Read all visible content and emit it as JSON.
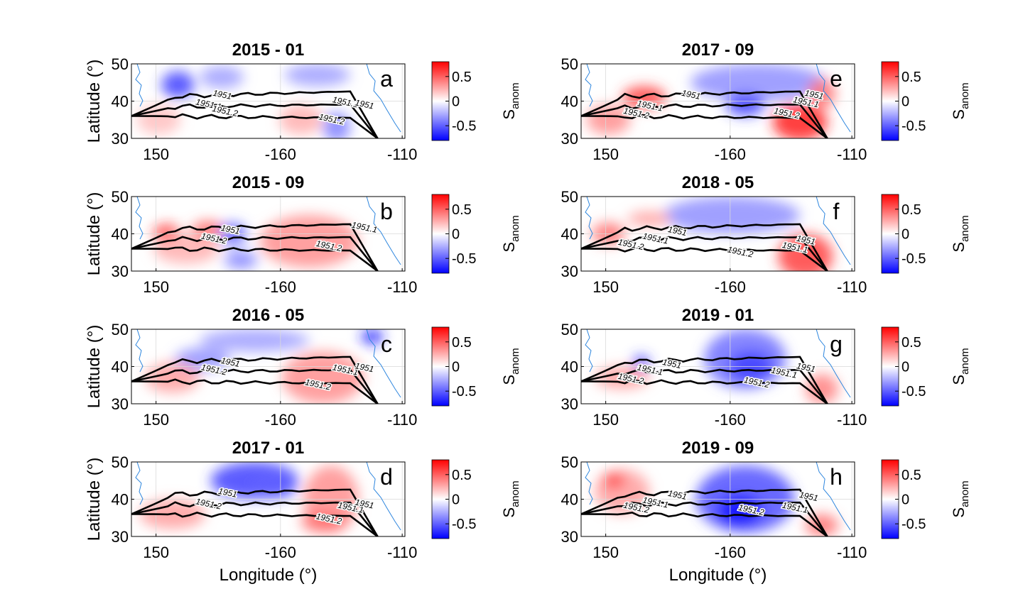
{
  "figure": {
    "xlabel": "Longitude (°)",
    "ylabel": "Latitude (°)",
    "colorbar": {
      "label_main": "S",
      "label_sub": "anom",
      "ticks": [
        "0.5",
        "0",
        "-0.5"
      ],
      "range": [
        -0.8,
        0.8
      ]
    },
    "contour_levels": [
      "1951",
      "1951.1",
      "1951.2"
    ]
  },
  "chart_data": [
    {
      "type": "heatmap",
      "panel": "a",
      "title": "2015 - 01",
      "xticks": [
        "150",
        "-160",
        "-110"
      ],
      "yticks": [
        "50",
        "40",
        "30"
      ],
      "ylim": [
        30,
        50
      ],
      "blobs": [
        {
          "x": 0.17,
          "y": 0.72,
          "rx": 0.06,
          "ry": 0.18,
          "v": -0.6
        },
        {
          "x": 0.33,
          "y": 0.82,
          "rx": 0.08,
          "ry": 0.15,
          "v": -0.3
        },
        {
          "x": 0.68,
          "y": 0.85,
          "rx": 0.12,
          "ry": 0.15,
          "v": -0.3
        },
        {
          "x": 0.62,
          "y": 0.25,
          "rx": 0.08,
          "ry": 0.2,
          "v": 0.25
        },
        {
          "x": 0.75,
          "y": 0.15,
          "rx": 0.05,
          "ry": 0.2,
          "v": -0.4
        },
        {
          "x": 0.1,
          "y": 0.25,
          "rx": 0.08,
          "ry": 0.2,
          "v": 0.2
        }
      ],
      "contour_labels": [
        {
          "x": 0.33,
          "y": 0.55,
          "text": "1951"
        },
        {
          "x": 0.28,
          "y": 0.42,
          "text": "1951.1"
        },
        {
          "x": 0.34,
          "y": 0.33,
          "text": "1951.2"
        },
        {
          "x": 0.73,
          "y": 0.22,
          "text": "1951.2"
        },
        {
          "x": 0.78,
          "y": 0.45,
          "text": "1951.1"
        },
        {
          "x": 0.85,
          "y": 0.42,
          "text": "1951"
        }
      ]
    },
    {
      "type": "heatmap",
      "panel": "b",
      "title": "2015 - 09",
      "xticks": [
        "150",
        "-160",
        "-110"
      ],
      "yticks": [
        "50",
        "40",
        "30"
      ],
      "ylim": [
        30,
        50
      ],
      "blobs": [
        {
          "x": 0.13,
          "y": 0.5,
          "rx": 0.05,
          "ry": 0.12,
          "v": 0.7
        },
        {
          "x": 0.28,
          "y": 0.55,
          "rx": 0.06,
          "ry": 0.12,
          "v": 0.5
        },
        {
          "x": 0.37,
          "y": 0.5,
          "rx": 0.05,
          "ry": 0.15,
          "v": -0.5
        },
        {
          "x": 0.65,
          "y": 0.4,
          "rx": 0.18,
          "ry": 0.35,
          "v": 0.35
        },
        {
          "x": 0.4,
          "y": 0.15,
          "rx": 0.06,
          "ry": 0.12,
          "v": -0.4
        },
        {
          "x": 0.2,
          "y": 0.3,
          "rx": 0.12,
          "ry": 0.2,
          "v": 0.25
        }
      ],
      "contour_labels": [
        {
          "x": 0.36,
          "y": 0.52,
          "text": "1951"
        },
        {
          "x": 0.3,
          "y": 0.4,
          "text": "1951.2"
        },
        {
          "x": 0.85,
          "y": 0.55,
          "text": "1951.1"
        },
        {
          "x": 0.72,
          "y": 0.3,
          "text": "1951.2"
        }
      ]
    },
    {
      "type": "heatmap",
      "panel": "c",
      "title": "2016 - 05",
      "xticks": [
        "150",
        "-160",
        "-110"
      ],
      "yticks": [
        "50",
        "40",
        "30"
      ],
      "ylim": [
        30,
        50
      ],
      "blobs": [
        {
          "x": 0.45,
          "y": 0.85,
          "rx": 0.2,
          "ry": 0.15,
          "v": -0.3
        },
        {
          "x": 0.26,
          "y": 0.6,
          "rx": 0.1,
          "ry": 0.15,
          "v": -0.35
        },
        {
          "x": 0.7,
          "y": 0.35,
          "rx": 0.15,
          "ry": 0.35,
          "v": 0.35
        },
        {
          "x": 0.88,
          "y": 0.9,
          "rx": 0.04,
          "ry": 0.1,
          "v": -0.7
        },
        {
          "x": 0.15,
          "y": 0.35,
          "rx": 0.1,
          "ry": 0.2,
          "v": 0.3
        }
      ],
      "contour_labels": [
        {
          "x": 0.36,
          "y": 0.52,
          "text": "1951"
        },
        {
          "x": 0.3,
          "y": 0.42,
          "text": "1951.2"
        },
        {
          "x": 0.78,
          "y": 0.42,
          "text": "1951.1"
        },
        {
          "x": 0.68,
          "y": 0.22,
          "text": "1951.2"
        },
        {
          "x": 0.85,
          "y": 0.45,
          "text": "1951"
        }
      ]
    },
    {
      "type": "heatmap",
      "panel": "d",
      "title": "2017 - 01",
      "xticks": [
        "150",
        "-160",
        "-110"
      ],
      "yticks": [
        "50",
        "40",
        "30"
      ],
      "ylim": [
        30,
        50
      ],
      "blobs": [
        {
          "x": 0.45,
          "y": 0.75,
          "rx": 0.16,
          "ry": 0.25,
          "v": -0.6
        },
        {
          "x": 0.52,
          "y": 0.65,
          "rx": 0.08,
          "ry": 0.15,
          "v": -0.5
        },
        {
          "x": 0.73,
          "y": 0.5,
          "rx": 0.1,
          "ry": 0.45,
          "v": 0.35
        },
        {
          "x": 0.15,
          "y": 0.3,
          "rx": 0.12,
          "ry": 0.2,
          "v": 0.3
        },
        {
          "x": 0.7,
          "y": 0.2,
          "rx": 0.08,
          "ry": 0.15,
          "v": 0.45
        }
      ],
      "contour_labels": [
        {
          "x": 0.35,
          "y": 0.55,
          "text": "1951"
        },
        {
          "x": 0.28,
          "y": 0.4,
          "text": "1951.2"
        },
        {
          "x": 0.72,
          "y": 0.2,
          "text": "1951.2"
        },
        {
          "x": 0.8,
          "y": 0.35,
          "text": "1951.1"
        },
        {
          "x": 0.85,
          "y": 0.4,
          "text": "1951"
        }
      ]
    },
    {
      "type": "heatmap",
      "panel": "e",
      "title": "2017 - 09",
      "xticks": [
        "150",
        "-160",
        "-110"
      ],
      "yticks": [
        "50",
        "40",
        "30"
      ],
      "ylim": [
        30,
        50
      ],
      "blobs": [
        {
          "x": 0.65,
          "y": 0.75,
          "rx": 0.25,
          "ry": 0.25,
          "v": -0.35
        },
        {
          "x": 0.6,
          "y": 0.45,
          "rx": 0.07,
          "ry": 0.15,
          "v": -0.6
        },
        {
          "x": 0.8,
          "y": 0.22,
          "rx": 0.1,
          "ry": 0.25,
          "v": 0.7
        },
        {
          "x": 0.23,
          "y": 0.55,
          "rx": 0.08,
          "ry": 0.15,
          "v": 0.6
        },
        {
          "x": 0.1,
          "y": 0.25,
          "rx": 0.08,
          "ry": 0.2,
          "v": 0.35
        },
        {
          "x": 0.88,
          "y": 0.6,
          "rx": 0.05,
          "ry": 0.2,
          "v": 0.45
        }
      ],
      "contour_labels": [
        {
          "x": 0.4,
          "y": 0.55,
          "text": "1951"
        },
        {
          "x": 0.25,
          "y": 0.4,
          "text": "1951.1"
        },
        {
          "x": 0.2,
          "y": 0.3,
          "text": "1951.2"
        },
        {
          "x": 0.75,
          "y": 0.3,
          "text": "1951.2"
        },
        {
          "x": 0.82,
          "y": 0.45,
          "text": "1951.1"
        },
        {
          "x": 0.85,
          "y": 0.55,
          "text": "1951"
        }
      ]
    },
    {
      "type": "heatmap",
      "panel": "f",
      "title": "2018 - 05",
      "xticks": [
        "150",
        "-160",
        "-110"
      ],
      "yticks": [
        "50",
        "40",
        "30"
      ],
      "ylim": [
        30,
        50
      ],
      "blobs": [
        {
          "x": 0.55,
          "y": 0.75,
          "rx": 0.25,
          "ry": 0.25,
          "v": -0.35
        },
        {
          "x": 0.82,
          "y": 0.2,
          "rx": 0.1,
          "ry": 0.3,
          "v": 0.6
        },
        {
          "x": 0.1,
          "y": 0.5,
          "rx": 0.06,
          "ry": 0.15,
          "v": 0.45
        },
        {
          "x": 0.25,
          "y": 0.7,
          "rx": 0.08,
          "ry": 0.1,
          "v": 0.3
        }
      ],
      "contour_labels": [
        {
          "x": 0.35,
          "y": 0.5,
          "text": "1951"
        },
        {
          "x": 0.27,
          "y": 0.4,
          "text": "1951.1"
        },
        {
          "x": 0.18,
          "y": 0.32,
          "text": "1951.2"
        },
        {
          "x": 0.58,
          "y": 0.22,
          "text": "1951.2"
        },
        {
          "x": 0.78,
          "y": 0.28,
          "text": "1951.1"
        },
        {
          "x": 0.82,
          "y": 0.38,
          "text": "1951"
        }
      ]
    },
    {
      "type": "heatmap",
      "panel": "g",
      "title": "2019 - 01",
      "xticks": [
        "150",
        "-160",
        "-110"
      ],
      "yticks": [
        "50",
        "40",
        "30"
      ],
      "ylim": [
        30,
        50
      ],
      "blobs": [
        {
          "x": 0.6,
          "y": 0.6,
          "rx": 0.15,
          "ry": 0.4,
          "v": -0.45
        },
        {
          "x": 0.62,
          "y": 0.5,
          "rx": 0.08,
          "ry": 0.2,
          "v": -0.6
        },
        {
          "x": 0.22,
          "y": 0.55,
          "rx": 0.03,
          "ry": 0.1,
          "v": -0.6
        },
        {
          "x": 0.88,
          "y": 0.2,
          "rx": 0.06,
          "ry": 0.2,
          "v": 0.4
        },
        {
          "x": 0.15,
          "y": 0.35,
          "rx": 0.1,
          "ry": 0.15,
          "v": 0.3
        }
      ],
      "contour_labels": [
        {
          "x": 0.33,
          "y": 0.5,
          "text": "1951"
        },
        {
          "x": 0.25,
          "y": 0.42,
          "text": "1951.1"
        },
        {
          "x": 0.18,
          "y": 0.3,
          "text": "1951.2"
        },
        {
          "x": 0.64,
          "y": 0.25,
          "text": "1951.2"
        },
        {
          "x": 0.74,
          "y": 0.38,
          "text": "1951.1"
        },
        {
          "x": 0.82,
          "y": 0.45,
          "text": "1951"
        }
      ]
    },
    {
      "type": "heatmap",
      "panel": "h",
      "title": "2019 - 09",
      "xticks": [
        "150",
        "-160",
        "-110"
      ],
      "yticks": [
        "50",
        "40",
        "30"
      ],
      "ylim": [
        30,
        50
      ],
      "blobs": [
        {
          "x": 0.6,
          "y": 0.5,
          "rx": 0.18,
          "ry": 0.45,
          "v": -0.55
        },
        {
          "x": 0.58,
          "y": 0.35,
          "rx": 0.08,
          "ry": 0.2,
          "v": -0.75
        },
        {
          "x": 0.15,
          "y": 0.6,
          "rx": 0.1,
          "ry": 0.3,
          "v": 0.3
        },
        {
          "x": 0.12,
          "y": 0.75,
          "rx": 0.04,
          "ry": 0.1,
          "v": 0.6
        },
        {
          "x": 0.88,
          "y": 0.15,
          "rx": 0.06,
          "ry": 0.15,
          "v": 0.45
        }
      ],
      "contour_labels": [
        {
          "x": 0.35,
          "y": 0.52,
          "text": "1951"
        },
        {
          "x": 0.27,
          "y": 0.42,
          "text": "1951.1"
        },
        {
          "x": 0.2,
          "y": 0.35,
          "text": "1951.2"
        },
        {
          "x": 0.62,
          "y": 0.32,
          "text": "1951.2"
        },
        {
          "x": 0.78,
          "y": 0.35,
          "text": "1951.1"
        },
        {
          "x": 0.83,
          "y": 0.5,
          "text": "1951"
        }
      ]
    }
  ]
}
